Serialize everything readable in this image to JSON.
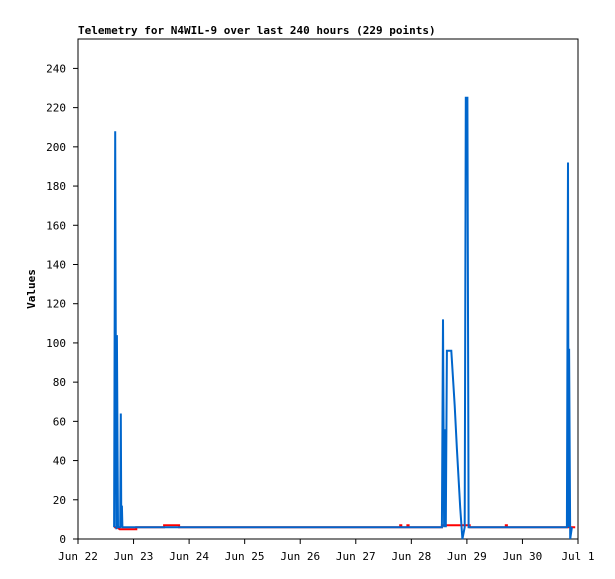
{
  "chart_data": {
    "type": "line",
    "title": "Telemetry for N4WIL-9 over last 240 hours (229 points)",
    "xlabel": "",
    "ylabel": "Values",
    "ylim": [
      0,
      255
    ],
    "yticks": [
      0,
      20,
      40,
      60,
      80,
      100,
      120,
      140,
      160,
      180,
      200,
      220,
      240
    ],
    "xlim": [
      0,
      9
    ],
    "xticks": [
      {
        "pos": 0,
        "label": "Jun 22"
      },
      {
        "pos": 1,
        "label": "Jun 23"
      },
      {
        "pos": 2,
        "label": "Jun 24"
      },
      {
        "pos": 3,
        "label": "Jun 25"
      },
      {
        "pos": 4,
        "label": "Jun 26"
      },
      {
        "pos": 5,
        "label": "Jun 27"
      },
      {
        "pos": 6,
        "label": "Jun 28"
      },
      {
        "pos": 7,
        "label": "Jun 29"
      },
      {
        "pos": 8,
        "label": "Jun 30"
      },
      {
        "pos": 9,
        "label": "Jul 1"
      }
    ],
    "grid": false,
    "series": [
      {
        "color": "#ff0000",
        "points": [
          [
            0.65,
            6
          ],
          [
            0.7,
            6
          ],
          [
            0.75,
            5
          ],
          [
            1.05,
            5
          ],
          [
            1.05,
            6
          ],
          [
            1.55,
            6
          ],
          [
            1.55,
            7
          ],
          [
            1.82,
            7
          ],
          [
            1.82,
            6
          ],
          [
            5.8,
            6
          ],
          [
            5.8,
            7
          ],
          [
            5.82,
            7
          ],
          [
            5.82,
            6
          ],
          [
            5.93,
            6
          ],
          [
            5.93,
            7
          ],
          [
            5.95,
            7
          ],
          [
            5.95,
            6
          ],
          [
            6.55,
            6
          ],
          [
            6.55,
            7
          ],
          [
            7.05,
            7
          ],
          [
            7.05,
            6
          ],
          [
            7.7,
            6
          ],
          [
            7.7,
            7
          ],
          [
            7.72,
            7
          ],
          [
            7.72,
            6
          ],
          [
            8.95,
            6
          ]
        ]
      },
      {
        "color": "#0066cc",
        "points": [
          [
            0.65,
            6
          ],
          [
            0.67,
            208
          ],
          [
            0.69,
            5
          ],
          [
            0.7,
            104
          ],
          [
            0.72,
            6
          ],
          [
            0.76,
            6
          ],
          [
            0.77,
            64
          ],
          [
            0.78,
            6
          ],
          [
            0.79,
            17
          ],
          [
            0.8,
            6
          ],
          [
            0.85,
            6
          ],
          [
            6.55,
            6
          ],
          [
            6.57,
            112
          ],
          [
            6.59,
            6
          ],
          [
            6.6,
            56
          ],
          [
            6.62,
            6
          ],
          [
            6.64,
            96
          ],
          [
            6.72,
            96
          ],
          [
            6.78,
            68
          ],
          [
            6.82,
            46
          ],
          [
            6.88,
            16
          ],
          [
            6.92,
            0
          ],
          [
            6.96,
            6
          ],
          [
            6.98,
            225
          ],
          [
            7.01,
            225
          ],
          [
            7.03,
            6
          ],
          [
            7.08,
            6
          ],
          [
            8.75,
            6
          ],
          [
            8.8,
            6
          ],
          [
            8.82,
            192
          ],
          [
            8.83,
            6
          ],
          [
            8.84,
            97
          ],
          [
            8.86,
            0
          ],
          [
            8.89,
            6
          ]
        ]
      }
    ]
  }
}
